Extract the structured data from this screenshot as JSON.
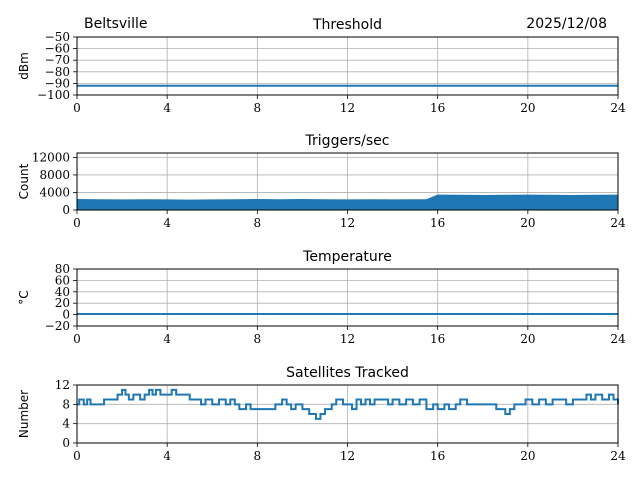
{
  "header": {
    "location": "Beltsville",
    "date": "2025/12/08"
  },
  "colors": {
    "series": "#1f77b4",
    "grid": "#b0b0b0",
    "axes": "#000000"
  },
  "chart_data": [
    {
      "type": "line",
      "title": "Threshold",
      "xlabel": "",
      "ylabel": "dBm",
      "xlim": [
        0,
        24
      ],
      "ylim": [
        -100,
        -50
      ],
      "xticks": [
        0,
        4,
        8,
        12,
        16,
        20,
        24
      ],
      "yticks": [
        -100,
        -90,
        -80,
        -70,
        -60,
        -50
      ],
      "grid": true,
      "series": [
        {
          "x": [
            0,
            24
          ],
          "y": [
            -92,
            -92
          ]
        }
      ]
    },
    {
      "type": "area",
      "title": "Triggers/sec",
      "xlabel": "",
      "ylabel": "Count",
      "xlim": [
        0,
        24
      ],
      "ylim": [
        0,
        13000
      ],
      "xticks": [
        0,
        4,
        8,
        12,
        16,
        20,
        24
      ],
      "yticks": [
        0,
        4000,
        8000,
        12000
      ],
      "grid": true,
      "series": [
        {
          "x": [
            0,
            1,
            2,
            3,
            4,
            5,
            6,
            7,
            8,
            9,
            10,
            11,
            12,
            13,
            14,
            15,
            15.5,
            16,
            17,
            18,
            19,
            20,
            21,
            22,
            23,
            24
          ],
          "y_low": [
            1000,
            950,
            900,
            950,
            900,
            950,
            900,
            950,
            1000,
            950,
            900,
            950,
            1000,
            950,
            900,
            950,
            950,
            1500,
            1450,
            1500,
            1450,
            1500,
            1450,
            1500,
            1450,
            1500
          ],
          "y_high": [
            2400,
            2350,
            2300,
            2350,
            2300,
            2250,
            2300,
            2350,
            2400,
            2350,
            2400,
            2350,
            2300,
            2350,
            2300,
            2350,
            2350,
            3400,
            3350,
            3300,
            3350,
            3400,
            3350,
            3300,
            3350,
            3400
          ]
        }
      ]
    },
    {
      "type": "line",
      "title": "Temperature",
      "xlabel": "",
      "ylabel": "°C",
      "xlim": [
        0,
        24
      ],
      "ylim": [
        -20,
        80
      ],
      "xticks": [
        0,
        4,
        8,
        12,
        16,
        20,
        24
      ],
      "yticks": [
        -20,
        0,
        20,
        40,
        60,
        80
      ],
      "grid": true,
      "series": [
        {
          "x": [
            0,
            24
          ],
          "y": [
            1,
            1
          ]
        }
      ]
    },
    {
      "type": "line",
      "title": "Satellites Tracked",
      "xlabel": "",
      "ylabel": "Number",
      "xlim": [
        0,
        24
      ],
      "ylim": [
        0,
        12
      ],
      "xticks": [
        0,
        4,
        8,
        12,
        16,
        20,
        24
      ],
      "yticks": [
        0,
        4,
        8,
        12
      ],
      "grid": true,
      "series": [
        {
          "x": [
            0,
            0.1,
            0.3,
            0.45,
            0.6,
            1.2,
            1.5,
            1.8,
            2.0,
            2.15,
            2.3,
            2.5,
            2.8,
            3.0,
            3.2,
            3.35,
            3.5,
            3.7,
            3.9,
            4.2,
            4.4,
            4.6,
            5.0,
            5.5,
            5.7,
            6.0,
            6.3,
            6.6,
            6.8,
            7.0,
            7.2,
            7.5,
            7.7,
            7.9,
            8.1,
            8.5,
            8.8,
            9.1,
            9.3,
            9.5,
            9.7,
            10.0,
            10.3,
            10.6,
            10.8,
            11.0,
            11.3,
            11.5,
            11.8,
            12.0,
            12.2,
            12.4,
            12.6,
            12.8,
            13.0,
            13.2,
            13.5,
            13.8,
            14.0,
            14.3,
            14.6,
            14.9,
            15.2,
            15.5,
            15.8,
            16.0,
            16.3,
            16.5,
            16.8,
            17.0,
            17.3,
            17.6,
            18.0,
            18.3,
            18.6,
            19.0,
            19.2,
            19.4,
            19.6,
            19.9,
            20.2,
            20.5,
            20.8,
            21.1,
            21.4,
            21.7,
            22.0,
            22.3,
            22.6,
            22.8,
            23.0,
            23.3,
            23.6,
            23.8,
            24.0
          ],
          "y": [
            8,
            9,
            8,
            9,
            8,
            9,
            9,
            10,
            11,
            10,
            9,
            10,
            9,
            10,
            11,
            10,
            11,
            10,
            10,
            11,
            10,
            10,
            9,
            8,
            9,
            8,
            9,
            8,
            9,
            8,
            7,
            8,
            7,
            7,
            7,
            7,
            8,
            9,
            8,
            7,
            8,
            7,
            6,
            5,
            6,
            7,
            8,
            9,
            8,
            8,
            7,
            9,
            8,
            9,
            8,
            9,
            9,
            8,
            9,
            8,
            9,
            8,
            9,
            7,
            8,
            7,
            8,
            7,
            8,
            9,
            8,
            8,
            8,
            8,
            7,
            6,
            7,
            8,
            8,
            9,
            8,
            9,
            8,
            9,
            9,
            8,
            9,
            9,
            10,
            9,
            10,
            9,
            10,
            9,
            8
          ]
        }
      ]
    }
  ]
}
